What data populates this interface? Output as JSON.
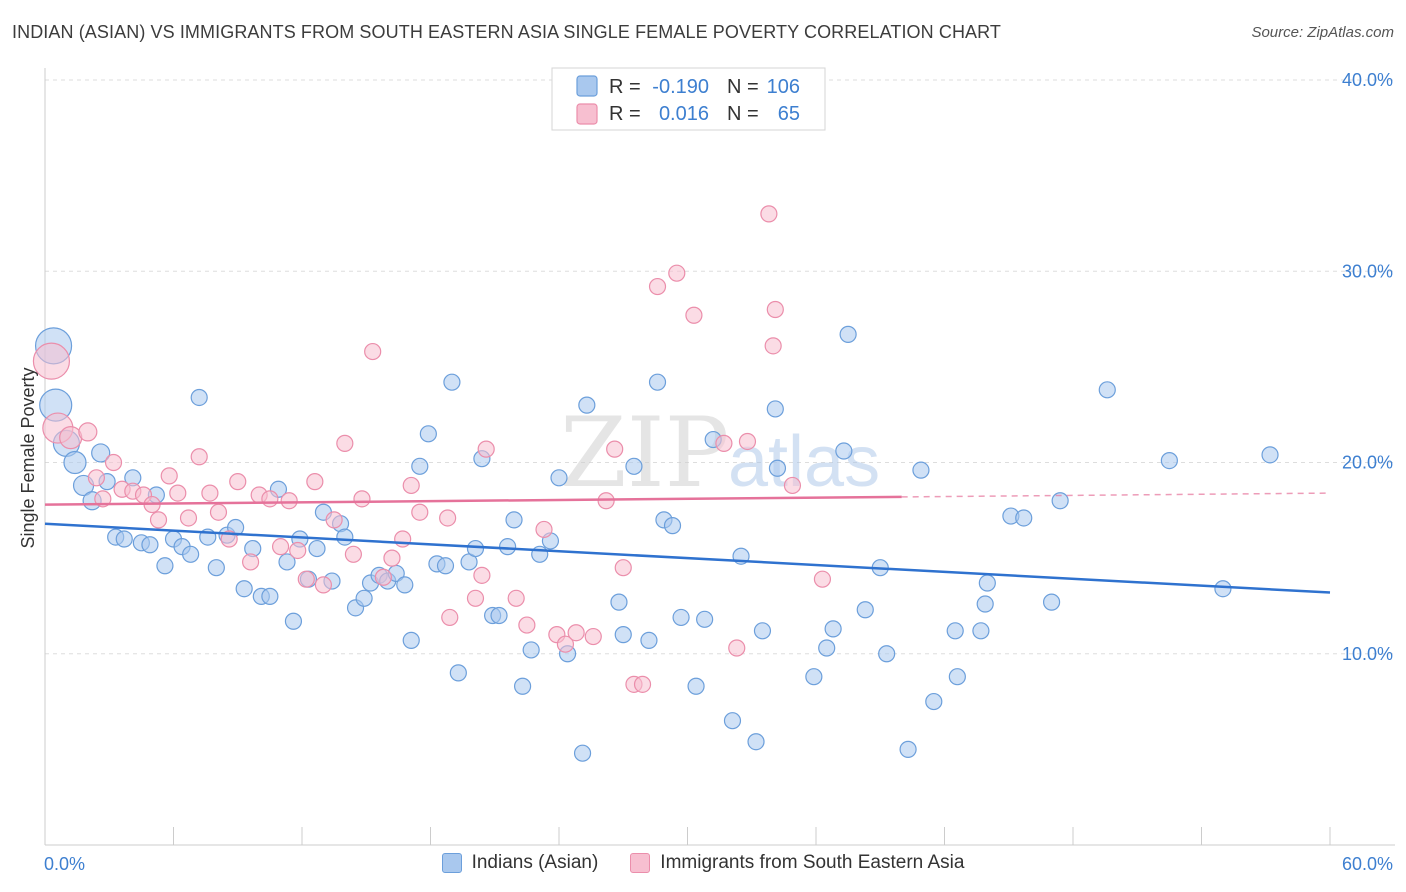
{
  "title": "INDIAN (ASIAN) VS IMMIGRANTS FROM SOUTH EASTERN ASIA SINGLE FEMALE POVERTY CORRELATION CHART",
  "source": "Source: ZipAtlas.com",
  "watermark": {
    "zip": "ZIP",
    "atlas": "atlas"
  },
  "colors": {
    "blue_fill": "#a9c8ee",
    "blue_stroke": "#6c9fdb",
    "blue_line": "#2f72cf",
    "pink_fill": "#f7bfd0",
    "pink_stroke": "#eb8eab",
    "pink_line": "#e5729a",
    "tick_text": "#3d7fd0",
    "grid": "#dddddd"
  },
  "legend": {
    "r_label": "R =",
    "n_label": "N =",
    "series": [
      {
        "r": "-0.190",
        "n": "106"
      },
      {
        "r": "0.016",
        "n": "65"
      }
    ]
  },
  "bottom_legend": [
    "Indians (Asian)",
    "Immigrants from South Eastern Asia"
  ],
  "chart_data": {
    "type": "scatter",
    "title": "INDIAN (ASIAN) VS IMMIGRANTS FROM SOUTH EASTERN ASIA SINGLE FEMALE POVERTY CORRELATION CHART",
    "xlabel": "",
    "ylabel": "Single Female Poverty",
    "xlim": [
      0,
      60
    ],
    "ylim": [
      0,
      40
    ],
    "x_tick_labels": [
      "0.0%",
      "60.0%"
    ],
    "y_ticks": [
      10,
      20,
      30,
      40
    ],
    "y_tick_labels": [
      "10.0%",
      "20.0%",
      "30.0%",
      "40.0%"
    ],
    "grid": true,
    "series": [
      {
        "name": "Indians (Asian)",
        "r": -0.19,
        "n": 106,
        "trend": {
          "x": [
            0,
            60
          ],
          "y": [
            16.8,
            13.2
          ],
          "dash_from": null
        },
        "points": [
          {
            "x": 0.4,
            "y": 26.1,
            "s": 18
          },
          {
            "x": 0.5,
            "y": 23.0,
            "s": 16
          },
          {
            "x": 1.0,
            "y": 21.0,
            "s": 13
          },
          {
            "x": 1.4,
            "y": 20.0,
            "s": 11
          },
          {
            "x": 1.8,
            "y": 18.8,
            "s": 10
          },
          {
            "x": 2.2,
            "y": 18.0,
            "s": 9
          },
          {
            "x": 2.6,
            "y": 20.5,
            "s": 9
          },
          {
            "x": 2.9,
            "y": 19.0,
            "s": 8
          },
          {
            "x": 3.3,
            "y": 16.1,
            "s": 8
          },
          {
            "x": 3.7,
            "y": 16.0,
            "s": 8
          },
          {
            "x": 4.1,
            "y": 19.2,
            "s": 8
          },
          {
            "x": 4.5,
            "y": 15.8,
            "s": 8
          },
          {
            "x": 4.9,
            "y": 15.7,
            "s": 8
          },
          {
            "x": 5.2,
            "y": 18.3,
            "s": 8
          },
          {
            "x": 5.6,
            "y": 14.6,
            "s": 8
          },
          {
            "x": 6.0,
            "y": 16.0,
            "s": 8
          },
          {
            "x": 6.4,
            "y": 15.6,
            "s": 8
          },
          {
            "x": 6.8,
            "y": 15.2,
            "s": 8
          },
          {
            "x": 7.2,
            "y": 23.4,
            "s": 8
          },
          {
            "x": 7.6,
            "y": 16.1,
            "s": 8
          },
          {
            "x": 8.0,
            "y": 14.5,
            "s": 8
          },
          {
            "x": 8.5,
            "y": 16.2,
            "s": 8
          },
          {
            "x": 8.9,
            "y": 16.6,
            "s": 8
          },
          {
            "x": 9.3,
            "y": 13.4,
            "s": 8
          },
          {
            "x": 9.7,
            "y": 15.5,
            "s": 8
          },
          {
            "x": 10.1,
            "y": 13.0,
            "s": 8
          },
          {
            "x": 10.5,
            "y": 13.0,
            "s": 8
          },
          {
            "x": 10.9,
            "y": 18.6,
            "s": 8
          },
          {
            "x": 11.3,
            "y": 14.8,
            "s": 8
          },
          {
            "x": 11.6,
            "y": 11.7,
            "s": 8
          },
          {
            "x": 11.9,
            "y": 16.0,
            "s": 8
          },
          {
            "x": 12.3,
            "y": 13.9,
            "s": 8
          },
          {
            "x": 12.7,
            "y": 15.5,
            "s": 8
          },
          {
            "x": 13.0,
            "y": 17.4,
            "s": 8
          },
          {
            "x": 13.4,
            "y": 13.8,
            "s": 8
          },
          {
            "x": 13.8,
            "y": 16.8,
            "s": 8
          },
          {
            "x": 14.0,
            "y": 16.1,
            "s": 8
          },
          {
            "x": 14.5,
            "y": 12.4,
            "s": 8
          },
          {
            "x": 14.9,
            "y": 12.9,
            "s": 8
          },
          {
            "x": 15.2,
            "y": 13.7,
            "s": 8
          },
          {
            "x": 15.6,
            "y": 14.1,
            "s": 8
          },
          {
            "x": 16.0,
            "y": 13.8,
            "s": 8
          },
          {
            "x": 16.4,
            "y": 14.2,
            "s": 8
          },
          {
            "x": 16.8,
            "y": 13.6,
            "s": 8
          },
          {
            "x": 17.1,
            "y": 10.7,
            "s": 8
          },
          {
            "x": 17.5,
            "y": 19.8,
            "s": 8
          },
          {
            "x": 17.9,
            "y": 21.5,
            "s": 8
          },
          {
            "x": 18.3,
            "y": 14.7,
            "s": 8
          },
          {
            "x": 18.7,
            "y": 14.6,
            "s": 8
          },
          {
            "x": 19.0,
            "y": 24.2,
            "s": 8
          },
          {
            "x": 19.3,
            "y": 9.0,
            "s": 8
          },
          {
            "x": 19.8,
            "y": 14.8,
            "s": 8
          },
          {
            "x": 20.1,
            "y": 15.5,
            "s": 8
          },
          {
            "x": 20.4,
            "y": 20.2,
            "s": 8
          },
          {
            "x": 20.9,
            "y": 12.0,
            "s": 8
          },
          {
            "x": 21.2,
            "y": 12.0,
            "s": 8
          },
          {
            "x": 21.6,
            "y": 15.6,
            "s": 8
          },
          {
            "x": 21.9,
            "y": 17.0,
            "s": 8
          },
          {
            "x": 22.3,
            "y": 8.3,
            "s": 8
          },
          {
            "x": 22.7,
            "y": 10.2,
            "s": 8
          },
          {
            "x": 23.1,
            "y": 15.2,
            "s": 8
          },
          {
            "x": 23.6,
            "y": 15.9,
            "s": 8
          },
          {
            "x": 24.0,
            "y": 19.2,
            "s": 8
          },
          {
            "x": 24.4,
            "y": 10.0,
            "s": 8
          },
          {
            "x": 25.1,
            "y": 4.8,
            "s": 8
          },
          {
            "x": 25.3,
            "y": 23.0,
            "s": 8
          },
          {
            "x": 26.8,
            "y": 12.7,
            "s": 8
          },
          {
            "x": 27.0,
            "y": 11.0,
            "s": 8
          },
          {
            "x": 27.5,
            "y": 19.8,
            "s": 8
          },
          {
            "x": 28.2,
            "y": 10.7,
            "s": 8
          },
          {
            "x": 28.6,
            "y": 24.2,
            "s": 8
          },
          {
            "x": 28.9,
            "y": 17.0,
            "s": 8
          },
          {
            "x": 29.3,
            "y": 16.7,
            "s": 8
          },
          {
            "x": 29.7,
            "y": 11.9,
            "s": 8
          },
          {
            "x": 30.4,
            "y": 8.3,
            "s": 8
          },
          {
            "x": 30.8,
            "y": 11.8,
            "s": 8
          },
          {
            "x": 31.2,
            "y": 21.2,
            "s": 8
          },
          {
            "x": 32.1,
            "y": 6.5,
            "s": 8
          },
          {
            "x": 32.5,
            "y": 15.1,
            "s": 8
          },
          {
            "x": 33.2,
            "y": 5.4,
            "s": 8
          },
          {
            "x": 33.5,
            "y": 11.2,
            "s": 8
          },
          {
            "x": 34.1,
            "y": 22.8,
            "s": 8
          },
          {
            "x": 34.2,
            "y": 19.7,
            "s": 8
          },
          {
            "x": 35.9,
            "y": 8.8,
            "s": 8
          },
          {
            "x": 36.5,
            "y": 10.3,
            "s": 8
          },
          {
            "x": 36.8,
            "y": 11.3,
            "s": 8
          },
          {
            "x": 37.3,
            "y": 20.6,
            "s": 8
          },
          {
            "x": 37.5,
            "y": 26.7,
            "s": 8
          },
          {
            "x": 38.3,
            "y": 12.3,
            "s": 8
          },
          {
            "x": 39.0,
            "y": 14.5,
            "s": 8
          },
          {
            "x": 39.3,
            "y": 10.0,
            "s": 8
          },
          {
            "x": 40.3,
            "y": 5.0,
            "s": 8
          },
          {
            "x": 40.9,
            "y": 19.6,
            "s": 8
          },
          {
            "x": 41.5,
            "y": 7.5,
            "s": 8
          },
          {
            "x": 42.5,
            "y": 11.2,
            "s": 8
          },
          {
            "x": 42.6,
            "y": 8.8,
            "s": 8
          },
          {
            "x": 43.7,
            "y": 11.2,
            "s": 8
          },
          {
            "x": 43.9,
            "y": 12.6,
            "s": 8
          },
          {
            "x": 44.0,
            "y": 13.7,
            "s": 8
          },
          {
            "x": 45.1,
            "y": 17.2,
            "s": 8
          },
          {
            "x": 45.7,
            "y": 17.1,
            "s": 8
          },
          {
            "x": 47.0,
            "y": 12.7,
            "s": 8
          },
          {
            "x": 47.4,
            "y": 18.0,
            "s": 8
          },
          {
            "x": 49.6,
            "y": 23.8,
            "s": 8
          },
          {
            "x": 52.5,
            "y": 20.1,
            "s": 8
          },
          {
            "x": 55.0,
            "y": 13.4,
            "s": 8
          },
          {
            "x": 57.2,
            "y": 20.4,
            "s": 8
          }
        ]
      },
      {
        "name": "Immigrants from South Eastern Asia",
        "r": 0.016,
        "n": 65,
        "trend": {
          "x": [
            0,
            60
          ],
          "y": [
            17.8,
            18.4
          ],
          "dash_from": 40.0
        },
        "points": [
          {
            "x": 0.3,
            "y": 25.3,
            "s": 18
          },
          {
            "x": 0.6,
            "y": 21.8,
            "s": 15
          },
          {
            "x": 1.2,
            "y": 21.3,
            "s": 11
          },
          {
            "x": 2.0,
            "y": 21.6,
            "s": 9
          },
          {
            "x": 2.4,
            "y": 19.2,
            "s": 8
          },
          {
            "x": 2.7,
            "y": 18.1,
            "s": 8
          },
          {
            "x": 3.2,
            "y": 20.0,
            "s": 8
          },
          {
            "x": 3.6,
            "y": 18.6,
            "s": 8
          },
          {
            "x": 4.1,
            "y": 18.5,
            "s": 8
          },
          {
            "x": 4.6,
            "y": 18.3,
            "s": 8
          },
          {
            "x": 5.0,
            "y": 17.8,
            "s": 8
          },
          {
            "x": 5.3,
            "y": 17.0,
            "s": 8
          },
          {
            "x": 5.8,
            "y": 19.3,
            "s": 8
          },
          {
            "x": 6.2,
            "y": 18.4,
            "s": 8
          },
          {
            "x": 6.7,
            "y": 17.1,
            "s": 8
          },
          {
            "x": 7.2,
            "y": 20.3,
            "s": 8
          },
          {
            "x": 7.7,
            "y": 18.4,
            "s": 8
          },
          {
            "x": 8.1,
            "y": 17.4,
            "s": 8
          },
          {
            "x": 8.6,
            "y": 16.0,
            "s": 8
          },
          {
            "x": 9.0,
            "y": 19.0,
            "s": 8
          },
          {
            "x": 9.6,
            "y": 14.8,
            "s": 8
          },
          {
            "x": 10.0,
            "y": 18.3,
            "s": 8
          },
          {
            "x": 10.5,
            "y": 18.1,
            "s": 8
          },
          {
            "x": 11.0,
            "y": 15.6,
            "s": 8
          },
          {
            "x": 11.4,
            "y": 18.0,
            "s": 8
          },
          {
            "x": 11.8,
            "y": 15.4,
            "s": 8
          },
          {
            "x": 12.2,
            "y": 13.9,
            "s": 8
          },
          {
            "x": 12.6,
            "y": 19.0,
            "s": 8
          },
          {
            "x": 13.0,
            "y": 13.6,
            "s": 8
          },
          {
            "x": 13.5,
            "y": 17.0,
            "s": 8
          },
          {
            "x": 14.0,
            "y": 21.0,
            "s": 8
          },
          {
            "x": 14.4,
            "y": 15.2,
            "s": 8
          },
          {
            "x": 14.8,
            "y": 18.1,
            "s": 8
          },
          {
            "x": 15.3,
            "y": 25.8,
            "s": 8
          },
          {
            "x": 15.8,
            "y": 14.0,
            "s": 8
          },
          {
            "x": 16.2,
            "y": 15.0,
            "s": 8
          },
          {
            "x": 16.7,
            "y": 16.0,
            "s": 8
          },
          {
            "x": 17.1,
            "y": 18.8,
            "s": 8
          },
          {
            "x": 17.5,
            "y": 17.4,
            "s": 8
          },
          {
            "x": 18.8,
            "y": 17.1,
            "s": 8
          },
          {
            "x": 18.9,
            "y": 11.9,
            "s": 8
          },
          {
            "x": 20.1,
            "y": 12.9,
            "s": 8
          },
          {
            "x": 20.4,
            "y": 14.1,
            "s": 8
          },
          {
            "x": 20.6,
            "y": 20.7,
            "s": 8
          },
          {
            "x": 22.0,
            "y": 12.9,
            "s": 8
          },
          {
            "x": 22.5,
            "y": 11.5,
            "s": 8
          },
          {
            "x": 23.3,
            "y": 16.5,
            "s": 8
          },
          {
            "x": 23.9,
            "y": 11.0,
            "s": 8
          },
          {
            "x": 24.3,
            "y": 10.5,
            "s": 8
          },
          {
            "x": 24.8,
            "y": 11.1,
            "s": 8
          },
          {
            "x": 25.6,
            "y": 10.9,
            "s": 8
          },
          {
            "x": 26.2,
            "y": 18.0,
            "s": 8
          },
          {
            "x": 26.6,
            "y": 20.7,
            "s": 8
          },
          {
            "x": 27.0,
            "y": 14.5,
            "s": 8
          },
          {
            "x": 27.5,
            "y": 8.4,
            "s": 8
          },
          {
            "x": 27.9,
            "y": 8.4,
            "s": 8
          },
          {
            "x": 28.6,
            "y": 29.2,
            "s": 8
          },
          {
            "x": 29.5,
            "y": 29.9,
            "s": 8
          },
          {
            "x": 30.3,
            "y": 27.7,
            "s": 8
          },
          {
            "x": 31.7,
            "y": 21.0,
            "s": 8
          },
          {
            "x": 32.3,
            "y": 10.3,
            "s": 8
          },
          {
            "x": 32.8,
            "y": 21.1,
            "s": 8
          },
          {
            "x": 33.8,
            "y": 33.0,
            "s": 8
          },
          {
            "x": 34.0,
            "y": 26.1,
            "s": 8
          },
          {
            "x": 34.1,
            "y": 28.0,
            "s": 8
          },
          {
            "x": 34.9,
            "y": 18.8,
            "s": 8
          },
          {
            "x": 36.3,
            "y": 13.9,
            "s": 8
          }
        ]
      }
    ]
  }
}
